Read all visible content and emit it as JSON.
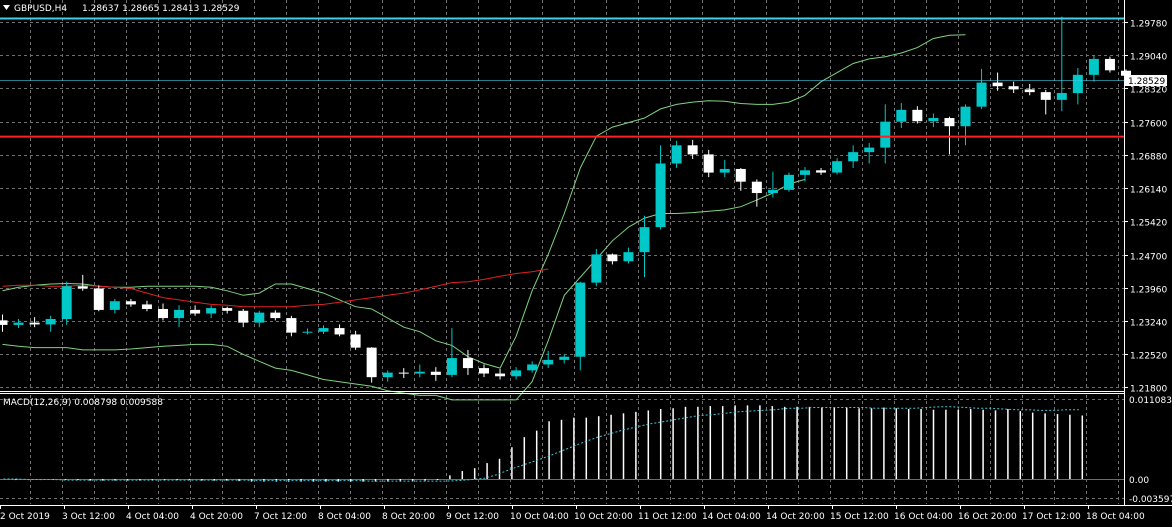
{
  "header": {
    "symbol_tf": "GBPUSD,H4",
    "ohlc": "1.28637 1.28665 1.28413 1.28529"
  },
  "price_axis": {
    "ticks": [
      "1.29780",
      "1.29040",
      "1.28320",
      "1.27600",
      "1.26880",
      "1.26140",
      "1.25420",
      "1.24700",
      "1.23960",
      "1.23240",
      "1.22520",
      "1.21800"
    ],
    "current_price": "1.28529"
  },
  "time_axis": {
    "ticks": [
      "2 Oct 2019",
      "3 Oct 12:00",
      "4 Oct 04:00",
      "4 Oct 20:00",
      "7 Oct 12:00",
      "8 Oct 04:00",
      "8 Oct 20:00",
      "9 Oct 12:00",
      "10 Oct 04:00",
      "10 Oct 20:00",
      "11 Oct 12:00",
      "14 Oct 04:00",
      "14 Oct 20:00",
      "15 Oct 12:00",
      "16 Oct 04:00",
      "16 Oct 20:00",
      "17 Oct 12:00",
      "18 Oct 04:00"
    ]
  },
  "macd": {
    "label": "MACD(12,26,9) 0.008798 0.009588",
    "ticks": [
      "0.011083",
      "0.00",
      "-0.003597"
    ]
  },
  "colors": {
    "bull": "#00c8c8",
    "bear": "#ffffff",
    "bands": "#7fd37f",
    "ma": "#e02020",
    "hline_top": "#40d0e8",
    "hline_red": "#ff2020",
    "grid": "#6e6e6e"
  },
  "chart_data": {
    "type": "candlestick",
    "symbol": "GBPUSD",
    "timeframe": "H4",
    "ohlc": [
      [
        1.2315,
        1.2328,
        1.229,
        1.2305
      ],
      [
        1.2305,
        1.2318,
        1.2298,
        1.231
      ],
      [
        1.231,
        1.2322,
        1.23,
        1.2306
      ],
      [
        1.2306,
        1.2325,
        1.229,
        1.2318
      ],
      [
        1.2318,
        1.24,
        1.2305,
        1.239
      ],
      [
        1.239,
        1.2415,
        1.238,
        1.2385
      ],
      [
        1.2385,
        1.2392,
        1.2335,
        1.2338
      ],
      [
        1.2338,
        1.2362,
        1.233,
        1.2357
      ],
      [
        1.2357,
        1.2362,
        1.2345,
        1.235
      ],
      [
        1.235,
        1.2358,
        1.2335,
        1.234
      ],
      [
        1.234,
        1.2352,
        1.2315,
        1.232
      ],
      [
        1.232,
        1.2348,
        1.23,
        1.2338
      ],
      [
        1.2338,
        1.2348,
        1.2325,
        1.233
      ],
      [
        1.233,
        1.2348,
        1.232,
        1.2342
      ],
      [
        1.2342,
        1.2345,
        1.233,
        1.2336
      ],
      [
        1.2336,
        1.234,
        1.23,
        1.231
      ],
      [
        1.231,
        1.2336,
        1.23,
        1.2332
      ],
      [
        1.2332,
        1.2337,
        1.2315,
        1.232
      ],
      [
        1.232,
        1.2325,
        1.228,
        1.2288
      ],
      [
        1.2288,
        1.2297,
        1.2284,
        1.229
      ],
      [
        1.229,
        1.2304,
        1.2285,
        1.2298
      ],
      [
        1.2298,
        1.2306,
        1.228,
        1.2284
      ],
      [
        1.2284,
        1.2292,
        1.225,
        1.2255
      ],
      [
        1.2255,
        1.2256,
        1.2178,
        1.219
      ],
      [
        1.219,
        1.2205,
        1.218,
        1.22
      ],
      [
        1.22,
        1.221,
        1.2188,
        1.2198
      ],
      [
        1.2198,
        1.2218,
        1.219,
        1.2202
      ],
      [
        1.2202,
        1.2212,
        1.2182,
        1.2195
      ],
      [
        1.2195,
        1.2298,
        1.219,
        1.2232
      ],
      [
        1.2232,
        1.225,
        1.2195,
        1.221
      ],
      [
        1.221,
        1.2218,
        1.219,
        1.2198
      ],
      [
        1.2198,
        1.2208,
        1.2185,
        1.2192
      ],
      [
        1.2192,
        1.2212,
        1.2185,
        1.2205
      ],
      [
        1.2205,
        1.2225,
        1.22,
        1.2218
      ],
      [
        1.2218,
        1.2248,
        1.221,
        1.2228
      ],
      [
        1.2228,
        1.224,
        1.222,
        1.2235
      ],
      [
        1.2235,
        1.24,
        1.2205,
        1.2398
      ],
      [
        1.2398,
        1.2472,
        1.239,
        1.246
      ],
      [
        1.246,
        1.2462,
        1.2438,
        1.2445
      ],
      [
        1.2445,
        1.2475,
        1.244,
        1.2465
      ],
      [
        1.2465,
        1.2545,
        1.241,
        1.252
      ],
      [
        1.252,
        1.27,
        1.2515,
        1.266
      ],
      [
        1.266,
        1.271,
        1.265,
        1.27
      ],
      [
        1.27,
        1.2712,
        1.267,
        1.268
      ],
      [
        1.268,
        1.269,
        1.263,
        1.264
      ],
      [
        1.264,
        1.2668,
        1.263,
        1.2648
      ],
      [
        1.2648,
        1.265,
        1.26,
        1.262
      ],
      [
        1.262,
        1.2625,
        1.2565,
        1.2595
      ],
      [
        1.2595,
        1.2642,
        1.2585,
        1.2602
      ],
      [
        1.2602,
        1.264,
        1.2598,
        1.2635
      ],
      [
        1.2635,
        1.2652,
        1.262,
        1.2645
      ],
      [
        1.2645,
        1.265,
        1.2635,
        1.264
      ],
      [
        1.264,
        1.2672,
        1.2636,
        1.2665
      ],
      [
        1.2665,
        1.27,
        1.265,
        1.2685
      ],
      [
        1.2685,
        1.2705,
        1.266,
        1.2695
      ],
      [
        1.2695,
        1.279,
        1.266,
        1.2752
      ],
      [
        1.2752,
        1.2793,
        1.2738,
        1.2778
      ],
      [
        1.2778,
        1.2786,
        1.2748,
        1.2753
      ],
      [
        1.2753,
        1.277,
        1.274,
        1.276
      ],
      [
        1.276,
        1.2763,
        1.268,
        1.2742
      ],
      [
        1.2742,
        1.279,
        1.27,
        1.2785
      ],
      [
        1.2785,
        1.2868,
        1.278,
        1.2838
      ],
      [
        1.2838,
        1.286,
        1.282,
        1.283
      ],
      [
        1.283,
        1.284,
        1.2815,
        1.2823
      ],
      [
        1.2823,
        1.2835,
        1.281,
        1.2817
      ],
      [
        1.2817,
        1.2822,
        1.2768,
        1.28
      ],
      [
        1.28,
        1.2983,
        1.2775,
        1.2815
      ],
      [
        1.2815,
        1.287,
        1.279,
        1.2855
      ],
      [
        1.2855,
        1.2898,
        1.284,
        1.289
      ],
      [
        1.289,
        1.2895,
        1.286,
        1.2865
      ],
      [
        1.2864,
        1.2867,
        1.2841,
        1.2853
      ]
    ],
    "bollinger_upper": [
      1.238,
      1.2388,
      1.2392,
      1.2395,
      1.2396,
      1.2395,
      1.239,
      1.2388,
      1.2388,
      1.239,
      1.239,
      1.239,
      1.239,
      1.2388,
      1.238,
      1.237,
      1.2375,
      1.2395,
      1.2395,
      1.2385,
      1.2375,
      1.236,
      1.2345,
      1.234,
      1.232,
      1.23,
      1.229,
      1.227,
      1.226,
      1.2235,
      1.222,
      1.221,
      1.228,
      1.238,
      1.246,
      1.255,
      1.265,
      1.272,
      1.274,
      1.275,
      1.276,
      1.278,
      1.279,
      1.2795,
      1.2798,
      1.2797,
      1.2792,
      1.279,
      1.279,
      1.2795,
      1.281,
      1.284,
      1.286,
      1.288,
      1.289,
      1.2895,
      1.2903,
      1.2915,
      1.2935,
      1.2942,
      1.2943
    ],
    "bollinger_lower": [
      1.2262,
      1.2258,
      1.2255,
      1.2255,
      1.2255,
      1.225,
      1.225,
      1.225,
      1.2252,
      1.2255,
      1.2258,
      1.226,
      1.2262,
      1.2262,
      1.2258,
      1.224,
      1.2225,
      1.221,
      1.2205,
      1.2195,
      1.2185,
      1.218,
      1.2175,
      1.217,
      1.216,
      1.2155,
      1.215,
      1.215,
      1.214,
      1.214,
      1.214,
      1.214,
      1.214,
      1.218,
      1.227,
      1.237,
      1.241,
      1.245,
      1.249,
      1.252,
      1.254,
      1.255,
      1.255,
      1.2552,
      1.2555,
      1.2558,
      1.2565,
      1.258,
      1.2595,
      1.2615,
      1.2625
    ],
    "moving_average": [
      1.239,
      1.2392,
      1.2392,
      1.239,
      1.239,
      1.2392,
      1.239,
      1.2388,
      1.2385,
      1.2375,
      1.2365,
      1.236,
      1.2355,
      1.235,
      1.2348,
      1.2345,
      1.2345,
      1.2345,
      1.2345,
      1.2348,
      1.235,
      1.2355,
      1.236,
      1.2365,
      1.237,
      1.2375,
      1.2382,
      1.239,
      1.2398,
      1.24,
      1.2405,
      1.2412,
      1.2418,
      1.2422,
      1.2428
    ],
    "ylim": [
      1.2175,
      1.2985
    ],
    "horizontal_lines": [
      1.2979,
      1.2719
    ],
    "macd_hist": [
      0.0,
      -0.0002,
      -0.0002,
      -0.0002,
      -0.0002,
      -0.0002,
      -0.0002,
      -0.0003,
      -0.0003,
      -0.0003,
      -0.0003,
      -0.0003,
      -0.0003,
      -0.0002,
      -0.0002,
      -0.0002,
      -0.0003,
      -0.0003,
      -0.0003,
      -0.0004,
      -0.0005,
      -0.0005,
      -0.0005,
      -0.0005,
      -0.0005,
      -0.0005,
      -0.0005,
      -0.0005,
      -0.0005,
      -0.0005,
      -0.0005,
      -0.0005,
      -0.0005,
      -0.0004,
      -0.0003,
      -0.0002,
      0.0005,
      0.0011,
      0.0015,
      0.0022,
      0.0028,
      0.0044,
      0.0058,
      0.0067,
      0.008,
      0.0082,
      0.0085,
      0.0085,
      0.0087,
      0.0089,
      0.0091,
      0.0093,
      0.0095,
      0.0097,
      0.0098,
      0.01,
      0.01,
      0.0101,
      0.0101,
      0.0102,
      0.0102,
      0.0102,
      0.0101,
      0.01,
      0.01,
      0.01,
      0.0099,
      0.0099,
      0.0099,
      0.0098,
      0.0098,
      0.0099,
      0.0098,
      0.0097,
      0.0097,
      0.0096,
      0.0096,
      0.0096,
      0.0097,
      0.0096,
      0.0095,
      0.0097,
      0.0094,
      0.0092,
      0.0091,
      0.009,
      0.0089,
      0.0088
    ],
    "macd_signal": [
      0.0,
      0.0,
      -0.0001,
      -0.0001,
      -0.0001,
      -0.0002,
      -0.0002,
      -0.0002,
      -0.0002,
      -0.0002,
      -0.0002,
      -0.0002,
      -0.0002,
      -0.0002,
      -0.0002,
      -0.0002,
      -0.0002,
      -0.0002,
      -0.0002,
      -0.0002,
      -0.0003,
      -0.0003,
      -0.0003,
      -0.0003,
      -0.0003,
      -0.0003,
      -0.0003,
      -0.0003,
      -0.0003,
      -0.0004,
      -0.0004,
      -0.0004,
      -0.0004,
      -0.0004,
      -0.0004,
      -0.0004,
      -0.0003,
      -0.0001,
      0.0001,
      0.0006,
      0.0013,
      0.0019,
      0.0025,
      0.0031,
      0.0038,
      0.0045,
      0.0052,
      0.0058,
      0.0063,
      0.0068,
      0.0072,
      0.0076,
      0.0079,
      0.0082,
      0.0085,
      0.0088,
      0.0089,
      0.0091,
      0.0093,
      0.0094,
      0.0095,
      0.0096,
      0.0098,
      0.0098,
      0.0099,
      0.0099,
      0.0099,
      0.0099,
      0.0099,
      0.0098,
      0.0098,
      0.0098,
      0.0098,
      0.0099,
      0.01,
      0.01,
      0.0099,
      0.0098,
      0.0098,
      0.0097,
      0.0096,
      0.0096,
      0.0095,
      0.0095,
      0.0096,
      0.0096
    ],
    "macd_ylim": [
      -0.003597,
      0.011083
    ]
  }
}
